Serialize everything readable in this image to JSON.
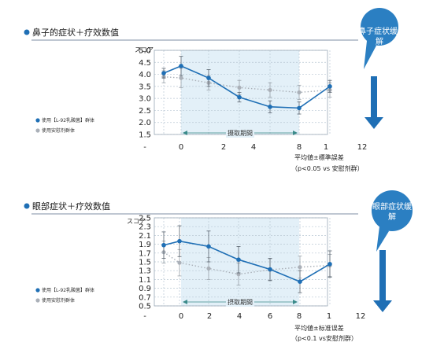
{
  "colors": {
    "series_active": "#1f6fb5",
    "series_placebo": "#aab0b8",
    "period_fill": "#e3f0f8",
    "grid": "#b9c7d3",
    "bubble": "#2b7fc2",
    "arrow": "#1f6fb5",
    "title_bar": "#7f8fa6"
  },
  "chart_data": [
    {
      "type": "line",
      "title": "鼻子的症状＋疗效数值",
      "ylabel": "スコア",
      "ylim": [
        1.5,
        5.0
      ],
      "yticks": [
        "5.0",
        "4.5",
        "4.0",
        "3.5",
        "3.0",
        "2.5",
        "2.0",
        "1.5"
      ],
      "categories": [
        "-",
        "0",
        "2",
        "4",
        "8",
        "1",
        "12"
      ],
      "series": [
        {
          "name": "使用【L-92乳酸菌】群体",
          "x": [
            -1.3,
            0,
            2,
            4,
            6,
            8,
            10
          ],
          "values": [
            4.05,
            4.35,
            3.85,
            3.05,
            2.65,
            2.6,
            3.5
          ],
          "err": [
            0.2,
            0.4,
            0.35,
            0.2,
            0.25,
            0.25,
            0.25
          ]
        },
        {
          "name": "使用安慰剂群体",
          "x": [
            -1.3,
            0,
            2,
            4,
            6,
            8,
            10
          ],
          "values": [
            3.9,
            3.85,
            3.65,
            3.45,
            3.35,
            3.25,
            3.35
          ],
          "err": [
            0.25,
            0.4,
            0.3,
            0.3,
            0.3,
            0.3,
            0.3
          ]
        }
      ],
      "period_label": "摄取期間",
      "notes": [
        "平均値±標準誤差",
        "（p<0.05 vs 安慰剂群）"
      ],
      "badge": "鼻子症状缓解"
    },
    {
      "type": "line",
      "title": "眼部症状＋疗效数值",
      "ylabel": "スコア",
      "ylim": [
        0.5,
        2.5
      ],
      "yticks": [
        "2.5",
        "2.3",
        "2.1",
        "1.9",
        "1.7",
        "1.5",
        "1.3",
        "1.1",
        "0.9",
        "0.7",
        "0.5"
      ],
      "categories": [
        "-",
        "0",
        "2",
        "4",
        "6",
        "8",
        "1",
        "12"
      ],
      "series": [
        {
          "name": "使用【L-92乳酸菌】群体",
          "x": [
            -1.3,
            0,
            2,
            4,
            6,
            8,
            10
          ],
          "values": [
            1.88,
            1.97,
            1.85,
            1.55,
            1.33,
            1.05,
            1.45
          ],
          "err": [
            0.3,
            0.35,
            0.35,
            0.3,
            0.25,
            0.25,
            0.3
          ]
        },
        {
          "name": "使用安慰剂群体",
          "x": [
            -1.3,
            0,
            2,
            4,
            6,
            8,
            10
          ],
          "values": [
            1.72,
            1.48,
            1.35,
            1.22,
            1.32,
            1.38,
            1.42
          ],
          "err": [
            0.25,
            0.3,
            0.25,
            0.25,
            0.25,
            0.25,
            0.25
          ]
        }
      ],
      "period_label": "摂取期間",
      "notes": [
        "平均値±标准误差",
        "（p<0.1 vs安慰剂群）"
      ],
      "badge": "眼部症状缓解"
    }
  ]
}
